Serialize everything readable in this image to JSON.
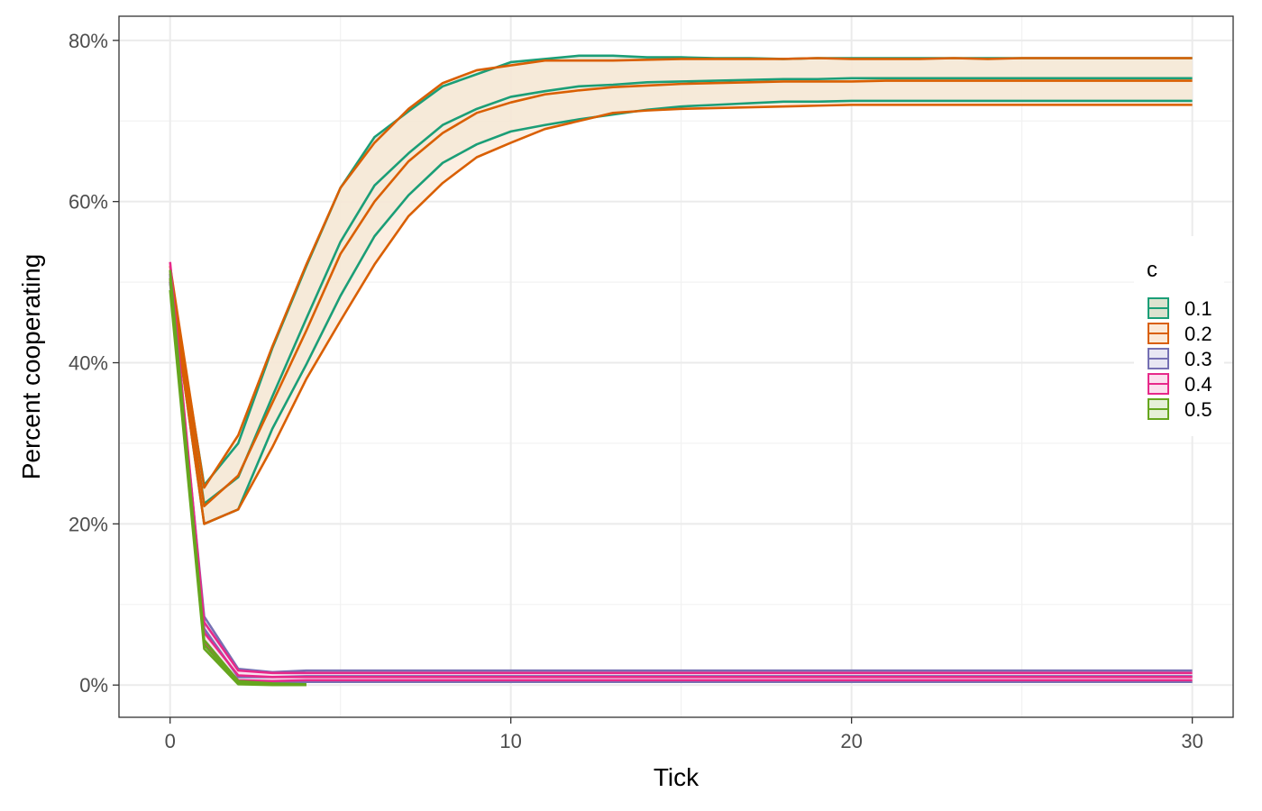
{
  "chart_data": {
    "type": "line",
    "xlabel": "Tick",
    "ylabel": "Percent cooperating",
    "xlim": [
      -1.5,
      31.2
    ],
    "ylim": [
      -0.04,
      0.83
    ],
    "x_ticks": [
      0,
      10,
      20,
      30
    ],
    "x_tick_labels": [
      "0",
      "10",
      "20",
      "30"
    ],
    "y_ticks": [
      0,
      0.2,
      0.4,
      0.6,
      0.8
    ],
    "y_tick_labels": [
      "0%",
      "20%",
      "40%",
      "60%",
      "80%"
    ],
    "grid": true,
    "legend": {
      "title": "c",
      "position": "right",
      "entries": [
        "0.1",
        "0.2",
        "0.3",
        "0.4",
        "0.5"
      ]
    },
    "series": [
      {
        "name": "0.1",
        "color": "#1b9e77",
        "ribbon_fill": "#dde2cf",
        "x": [
          0,
          1,
          2,
          3,
          4,
          5,
          6,
          7,
          8,
          9,
          10,
          11,
          12,
          13,
          14,
          15,
          16,
          17,
          18,
          19,
          20,
          21,
          22,
          23,
          24,
          25,
          26,
          27,
          28,
          29,
          30
        ],
        "mean": [
          0.505,
          0.225,
          0.258,
          0.358,
          0.455,
          0.55,
          0.62,
          0.66,
          0.695,
          0.715,
          0.73,
          0.737,
          0.743,
          0.745,
          0.748,
          0.749,
          0.75,
          0.751,
          0.752,
          0.752,
          0.753,
          0.753,
          0.753,
          0.753,
          0.753,
          0.753,
          0.753,
          0.753,
          0.753,
          0.753,
          0.753
        ],
        "upper": [
          0.51,
          0.248,
          0.3,
          0.418,
          0.52,
          0.617,
          0.68,
          0.712,
          0.743,
          0.758,
          0.773,
          0.777,
          0.781,
          0.781,
          0.779,
          0.779,
          0.778,
          0.778,
          0.777,
          0.778,
          0.778,
          0.778,
          0.778,
          0.778,
          0.778,
          0.778,
          0.778,
          0.778,
          0.778,
          0.778,
          0.778
        ],
        "lower": [
          0.5,
          0.2,
          0.218,
          0.318,
          0.398,
          0.483,
          0.557,
          0.608,
          0.648,
          0.671,
          0.687,
          0.695,
          0.702,
          0.708,
          0.714,
          0.718,
          0.72,
          0.722,
          0.724,
          0.724,
          0.725,
          0.725,
          0.725,
          0.725,
          0.725,
          0.725,
          0.725,
          0.725,
          0.725,
          0.725,
          0.725
        ]
      },
      {
        "name": "0.2",
        "color": "#d95f02",
        "ribbon_fill": "#fbe9d8",
        "x": [
          0,
          1,
          2,
          3,
          4,
          5,
          6,
          7,
          8,
          9,
          10,
          11,
          12,
          13,
          14,
          15,
          16,
          17,
          18,
          19,
          20,
          21,
          22,
          23,
          24,
          25,
          26,
          27,
          28,
          29,
          30
        ],
        "mean": [
          0.51,
          0.222,
          0.26,
          0.35,
          0.44,
          0.535,
          0.6,
          0.65,
          0.685,
          0.71,
          0.723,
          0.733,
          0.738,
          0.742,
          0.744,
          0.746,
          0.747,
          0.748,
          0.749,
          0.749,
          0.749,
          0.75,
          0.75,
          0.75,
          0.75,
          0.75,
          0.75,
          0.75,
          0.75,
          0.75,
          0.75
        ],
        "upper": [
          0.52,
          0.245,
          0.31,
          0.42,
          0.522,
          0.617,
          0.673,
          0.715,
          0.747,
          0.763,
          0.769,
          0.775,
          0.775,
          0.775,
          0.776,
          0.777,
          0.777,
          0.777,
          0.777,
          0.778,
          0.777,
          0.777,
          0.777,
          0.778,
          0.777,
          0.778,
          0.778,
          0.778,
          0.778,
          0.778,
          0.778
        ],
        "lower": [
          0.5,
          0.2,
          0.218,
          0.295,
          0.38,
          0.452,
          0.522,
          0.582,
          0.623,
          0.655,
          0.673,
          0.69,
          0.7,
          0.71,
          0.713,
          0.715,
          0.716,
          0.717,
          0.718,
          0.719,
          0.72,
          0.72,
          0.72,
          0.72,
          0.72,
          0.72,
          0.72,
          0.72,
          0.72,
          0.72,
          0.72
        ]
      },
      {
        "name": "0.3",
        "color": "#7570b3",
        "ribbon_fill": "#e8e7f3",
        "x": [
          0,
          1,
          2,
          3,
          4,
          5,
          6,
          7,
          8,
          9,
          10,
          11,
          12,
          13,
          14,
          15,
          16,
          17,
          18,
          19,
          20,
          21,
          22,
          23,
          24,
          25,
          26,
          27,
          28,
          29,
          30
        ],
        "mean": [
          0.505,
          0.07,
          0.01,
          0.01,
          0.011,
          0.011,
          0.011,
          0.011,
          0.011,
          0.011,
          0.011,
          0.011,
          0.011,
          0.011,
          0.011,
          0.011,
          0.011,
          0.011,
          0.011,
          0.011,
          0.011,
          0.011,
          0.011,
          0.011,
          0.011,
          0.011,
          0.011,
          0.011,
          0.011,
          0.011,
          0.011
        ],
        "upper": [
          0.51,
          0.085,
          0.02,
          0.016,
          0.018,
          0.018,
          0.018,
          0.018,
          0.018,
          0.018,
          0.018,
          0.018,
          0.018,
          0.018,
          0.018,
          0.018,
          0.018,
          0.018,
          0.018,
          0.018,
          0.018,
          0.018,
          0.018,
          0.018,
          0.018,
          0.018,
          0.018,
          0.018,
          0.018,
          0.018,
          0.018
        ],
        "lower": [
          0.5,
          0.05,
          0.003,
          0.003,
          0.004,
          0.004,
          0.004,
          0.004,
          0.004,
          0.004,
          0.004,
          0.004,
          0.004,
          0.004,
          0.004,
          0.004,
          0.004,
          0.004,
          0.004,
          0.004,
          0.004,
          0.004,
          0.004,
          0.004,
          0.004,
          0.004,
          0.004,
          0.004,
          0.004,
          0.004,
          0.004
        ]
      },
      {
        "name": "0.4",
        "color": "#e7298a",
        "ribbon_fill": "#fbe0ee",
        "x": [
          0,
          1,
          2,
          3,
          4,
          5,
          6,
          7,
          8,
          9,
          10,
          11,
          12,
          13,
          14,
          15,
          16,
          17,
          18,
          19,
          20,
          21,
          22,
          23,
          24,
          25,
          26,
          27,
          28,
          29,
          30
        ],
        "mean": [
          0.515,
          0.065,
          0.012,
          0.01,
          0.01,
          0.01,
          0.01,
          0.01,
          0.01,
          0.01,
          0.01,
          0.01,
          0.01,
          0.01,
          0.01,
          0.01,
          0.01,
          0.01,
          0.01,
          0.01,
          0.01,
          0.01,
          0.01,
          0.01,
          0.01,
          0.01,
          0.01,
          0.01,
          0.01,
          0.01,
          0.01
        ],
        "upper": [
          0.525,
          0.078,
          0.018,
          0.015,
          0.015,
          0.015,
          0.015,
          0.015,
          0.015,
          0.015,
          0.015,
          0.015,
          0.015,
          0.015,
          0.015,
          0.015,
          0.015,
          0.015,
          0.015,
          0.015,
          0.015,
          0.015,
          0.015,
          0.015,
          0.015,
          0.015,
          0.015,
          0.015,
          0.015,
          0.015,
          0.015
        ],
        "lower": [
          0.505,
          0.052,
          0.006,
          0.005,
          0.006,
          0.006,
          0.006,
          0.006,
          0.006,
          0.006,
          0.006,
          0.006,
          0.006,
          0.006,
          0.006,
          0.006,
          0.006,
          0.006,
          0.006,
          0.006,
          0.006,
          0.006,
          0.006,
          0.006,
          0.006,
          0.006,
          0.006,
          0.006,
          0.006,
          0.006,
          0.006
        ]
      },
      {
        "name": "0.5",
        "color": "#66a61e",
        "ribbon_fill": "#e6f0d8",
        "x": [
          0,
          1,
          2,
          3,
          4
        ],
        "mean": [
          0.505,
          0.05,
          0.003,
          0.001,
          0.0
        ],
        "upper": [
          0.515,
          0.056,
          0.005,
          0.002,
          0.001
        ],
        "lower": [
          0.49,
          0.045,
          0.001,
          0.0,
          0.0
        ]
      }
    ]
  }
}
